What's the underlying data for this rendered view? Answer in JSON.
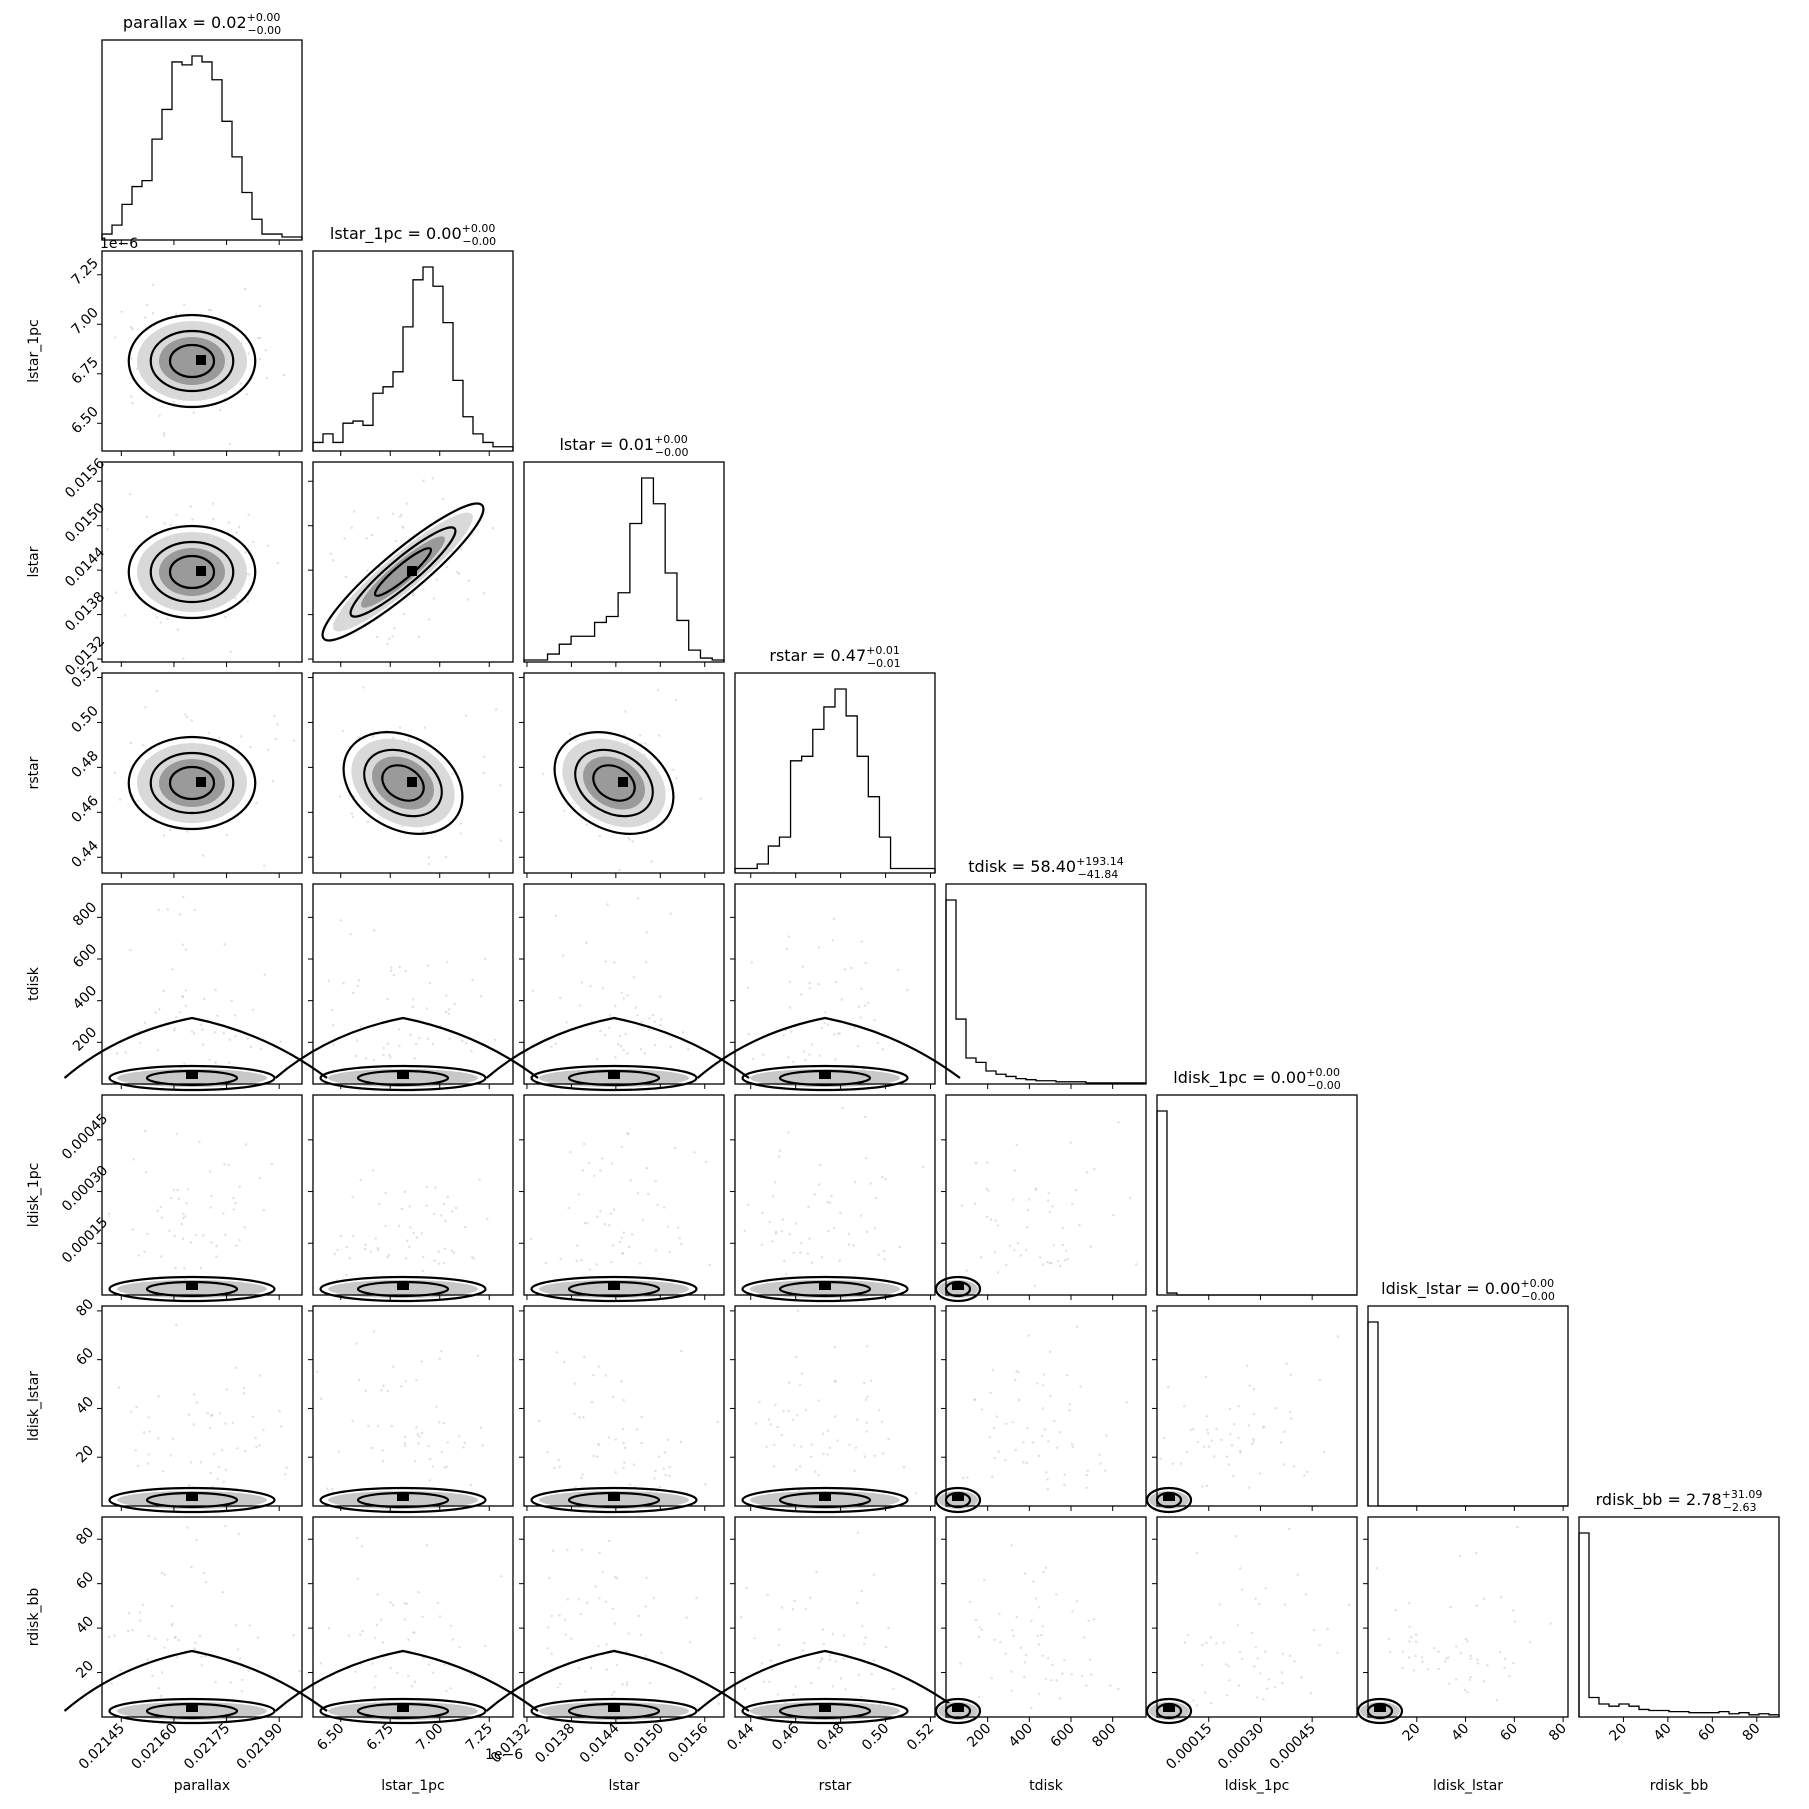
{
  "chart_data": {
    "type": "corner",
    "parameters": [
      {
        "name": "parallax",
        "label": "parallax",
        "title": "parallax = 0.02",
        "title_upper": "+0.00",
        "title_lower": "−0.00",
        "range": [
          2.1395,
          2.1965
        ],
        "scale": 0.01,
        "offset_label": "",
        "ticks": [
          0.02145,
          0.0216,
          0.02175,
          0.0219
        ],
        "tick_labels": [
          "0.02145",
          "0.02160",
          "0.02175",
          "0.02190"
        ],
        "hist_bins": [
          2,
          5,
          12,
          18,
          20,
          34,
          44,
          60,
          59,
          62,
          60,
          54,
          40,
          28,
          16,
          7,
          2,
          2,
          1,
          1
        ]
      },
      {
        "name": "lstar_1pc",
        "label": "lstar_1pc",
        "title": "lstar_1pc = 0.00",
        "title_upper": "+0.00",
        "title_lower": "−0.00",
        "range": [
          6.36,
          7.37
        ],
        "scale": 1e-06,
        "offset_label": "1e−6",
        "ticks": [
          6.5,
          6.75,
          7.0,
          7.25
        ],
        "tick_labels": [
          "6.50",
          "6.75",
          "7.00",
          "7.25"
        ],
        "hist_bins": [
          4,
          8,
          4,
          13,
          14,
          12,
          27,
          30,
          37,
          58,
          80,
          86,
          77,
          60,
          33,
          16,
          8,
          4,
          2,
          2
        ]
      },
      {
        "name": "lstar",
        "label": "lstar",
        "title": "lstar = 0.01",
        "title_upper": "+0.00",
        "title_lower": "−0.00",
        "range": [
          1.316,
          1.586
        ],
        "scale": 0.01,
        "offset_label": "",
        "ticks": [
          0.0132,
          0.0138,
          0.0144,
          0.015,
          0.0156
        ],
        "tick_labels": [
          "0.0132",
          "0.0138",
          "0.0144",
          "0.0150",
          "0.0156"
        ],
        "hist_bins": [
          1,
          1,
          4,
          9,
          13,
          13,
          20,
          23,
          35,
          70,
          93,
          80,
          45,
          21,
          6,
          2,
          1
        ]
      },
      {
        "name": "rstar",
        "label": "rstar",
        "title": "rstar = 0.47",
        "title_upper": "+0.01",
        "title_lower": "−0.01",
        "range": [
          0.433,
          0.522
        ],
        "scale": 1,
        "offset_label": "",
        "ticks": [
          0.44,
          0.46,
          0.48,
          0.5,
          0.52
        ],
        "tick_labels": [
          "0.44",
          "0.46",
          "0.48",
          "0.50",
          "0.52"
        ],
        "hist_bins": [
          1,
          1,
          2,
          6,
          8,
          25,
          26,
          32,
          37,
          41,
          35,
          26,
          17,
          8,
          1,
          1,
          1,
          1
        ]
      },
      {
        "name": "tdisk",
        "label": "tdisk",
        "title": "tdisk = 58.40",
        "title_upper": "+193.14",
        "title_lower": "−41.84",
        "range": [
          0,
          960
        ],
        "scale": 1,
        "offset_label": "",
        "ticks": [
          200,
          400,
          600,
          800
        ],
        "tick_labels": [
          "200",
          "400",
          "600",
          "800"
        ],
        "hist_bins": [
          170,
          60,
          24,
          20,
          12,
          9,
          7,
          5,
          4,
          3,
          3,
          2,
          2,
          2,
          1,
          1,
          1,
          1,
          1,
          1
        ]
      },
      {
        "name": "ldisk_1pc",
        "label": "ldisk_1pc",
        "title": "ldisk_1pc = 0.00",
        "title_upper": "+0.00",
        "title_lower": "−0.00",
        "range": [
          0,
          0.00058
        ],
        "scale": 1,
        "offset_label": "",
        "ticks": [
          0.00015,
          0.0003,
          0.00045
        ],
        "tick_labels": [
          "0.00015",
          "0.00030",
          "0.00045"
        ],
        "hist_bins": [
          95,
          1,
          0,
          0,
          0,
          0,
          0,
          0,
          0,
          0,
          0,
          0,
          0,
          0,
          0,
          0,
          0,
          0,
          0,
          0
        ]
      },
      {
        "name": "ldisk_lstar",
        "label": "ldisk_lstar",
        "title": "ldisk_lstar = 0.00",
        "title_upper": "+0.00",
        "title_lower": "−0.00",
        "range": [
          0,
          82
        ],
        "scale": 1,
        "offset_label": "",
        "ticks": [
          20,
          40,
          60,
          80
        ],
        "tick_labels": [
          "20",
          "40",
          "60",
          "80"
        ],
        "hist_bins": [
          95,
          0,
          0,
          0,
          0,
          0,
          0,
          0,
          0,
          0,
          0,
          0,
          0,
          0,
          0,
          0,
          0,
          0,
          0,
          0
        ]
      },
      {
        "name": "rdisk_bb",
        "label": "rdisk_bb",
        "title": "rdisk_bb = 2.78",
        "title_upper": "+31.09",
        "title_lower": "−2.63",
        "range": [
          0,
          90
        ],
        "scale": 1,
        "offset_label": "",
        "ticks": [
          20,
          40,
          60,
          80
        ],
        "tick_labels": [
          "20",
          "40",
          "60",
          "80"
        ],
        "hist_bins": [
          170,
          18,
          12,
          10,
          12,
          10,
          7,
          6,
          6,
          5,
          5,
          4,
          4,
          4,
          5,
          3,
          4,
          2,
          3,
          2
        ]
      }
    ],
    "grid": false,
    "legend": "none"
  }
}
